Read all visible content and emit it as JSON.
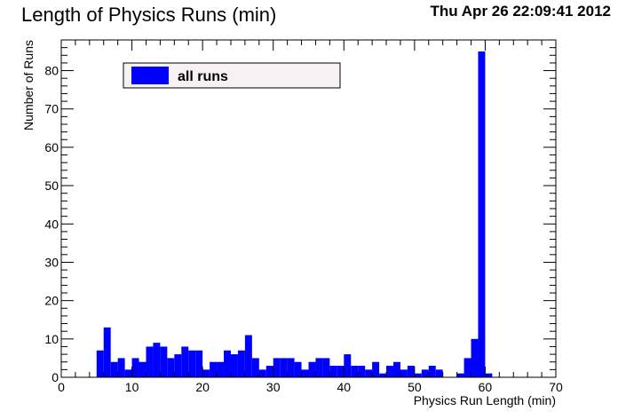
{
  "header": {
    "title": "Length of Physics Runs (min)",
    "timestamp": "Thu Apr 26 22:09:41 2012"
  },
  "colors": {
    "bar": "#0000ff",
    "legend_bg": "#f6f2f4"
  },
  "chart_data": {
    "type": "bar",
    "title": "Length of Physics Runs (min)",
    "xlabel": "Physics Run Length (min)",
    "ylabel": "Number of Runs",
    "xlim": [
      0,
      70
    ],
    "ylim": [
      0,
      88
    ],
    "xticks": [
      0,
      10,
      20,
      30,
      40,
      50,
      60,
      70
    ],
    "yticks": [
      0,
      10,
      20,
      30,
      40,
      50,
      60,
      70,
      80
    ],
    "bin_width": 1,
    "grid": false,
    "legend_position": "top-left",
    "series": [
      {
        "name": "all runs",
        "x": [
          5,
          6,
          7,
          8,
          9,
          10,
          11,
          12,
          13,
          14,
          15,
          16,
          17,
          18,
          19,
          20,
          21,
          22,
          23,
          24,
          25,
          26,
          27,
          28,
          29,
          30,
          31,
          32,
          33,
          34,
          35,
          36,
          37,
          38,
          39,
          40,
          41,
          42,
          43,
          44,
          45,
          46,
          47,
          48,
          49,
          50,
          51,
          52,
          53,
          54,
          55,
          56,
          57,
          58,
          59,
          60
        ],
        "values": [
          7,
          13,
          4,
          5,
          2,
          5,
          4,
          8,
          9,
          8,
          5,
          6,
          8,
          7,
          7,
          2,
          4,
          4,
          7,
          6,
          7,
          11,
          5,
          2,
          3,
          5,
          5,
          5,
          4,
          2,
          4,
          5,
          5,
          3,
          3,
          6,
          3,
          3,
          2,
          4,
          1,
          3,
          4,
          2,
          3,
          1,
          2,
          3,
          2,
          0,
          0,
          1,
          5,
          10,
          85,
          1
        ]
      }
    ]
  }
}
